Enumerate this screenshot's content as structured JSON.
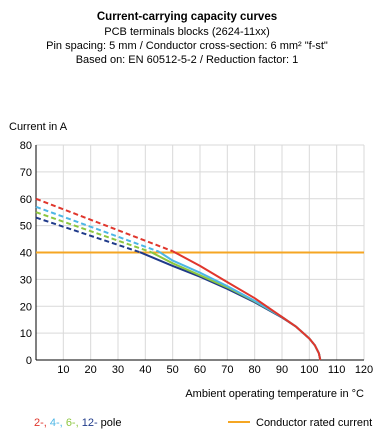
{
  "title": "Current-carrying capacity curves",
  "subtitle_lines": [
    "PCB terminals blocks (2624-11xx)",
    "Pin spacing: 5 mm / Conductor cross-section: 6 mm² \"f-st\"",
    "Based on: EN 60512-5-2 / Reduction factor: 1"
  ],
  "chart_data": {
    "type": "line",
    "ylabel": "Current in A",
    "xlabel": "Ambient operating temperature in °C",
    "xlim": [
      0,
      120
    ],
    "ylim": [
      0,
      80
    ],
    "x_ticks": [
      10,
      20,
      30,
      40,
      50,
      60,
      70,
      80,
      90,
      100,
      110,
      120
    ],
    "y_ticks": [
      0,
      10,
      20,
      30,
      40,
      50,
      60,
      70,
      80
    ],
    "grid": true,
    "series": [
      {
        "name": "2",
        "color": "#e0362c",
        "dashed": {
          "x": [
            0,
            50
          ],
          "y": [
            60,
            40.5
          ]
        },
        "solid": {
          "x": [
            50,
            60,
            70,
            80,
            90,
            95,
            100,
            102,
            103.5,
            104
          ],
          "y": [
            40.5,
            35,
            29,
            23,
            16,
            12.5,
            8,
            5.5,
            2.5,
            0
          ]
        }
      },
      {
        "name": "4",
        "color": "#4db6e6",
        "dashed": {
          "x": [
            0,
            45
          ],
          "y": [
            57,
            40.3
          ]
        },
        "solid": {
          "x": [
            45,
            50,
            60,
            70,
            80,
            90,
            95,
            100,
            102,
            103.5,
            104
          ],
          "y": [
            40.3,
            37,
            32.5,
            27.5,
            22,
            16,
            12.5,
            8,
            5.5,
            2.5,
            0
          ]
        }
      },
      {
        "name": "6",
        "color": "#8cc63f",
        "dashed": {
          "x": [
            0,
            42
          ],
          "y": [
            55,
            40.2
          ]
        },
        "solid": {
          "x": [
            42,
            50,
            60,
            70,
            80,
            90,
            95,
            100,
            102,
            103.5,
            104
          ],
          "y": [
            40.2,
            36,
            31.5,
            27,
            21.8,
            16,
            12.5,
            8,
            5.5,
            2.5,
            0
          ]
        }
      },
      {
        "name": "12",
        "color": "#1f3a8a",
        "dashed": {
          "x": [
            0,
            38
          ],
          "y": [
            53,
            40.1
          ]
        },
        "solid": {
          "x": [
            38,
            50,
            60,
            70,
            80,
            90,
            95,
            100,
            102,
            103.5,
            104
          ],
          "y": [
            40.1,
            35,
            31,
            26.5,
            21.5,
            15.8,
            12.5,
            8,
            5.5,
            2.5,
            0
          ]
        }
      }
    ],
    "rated_current": {
      "name": "Conductor rated current",
      "value": 40,
      "color": "#f5a623"
    },
    "legend": {
      "poles_parts": [
        "2-, ",
        "4-, ",
        "6-, ",
        "12-",
        " pole"
      ],
      "rated_label": "Conductor rated current"
    }
  }
}
